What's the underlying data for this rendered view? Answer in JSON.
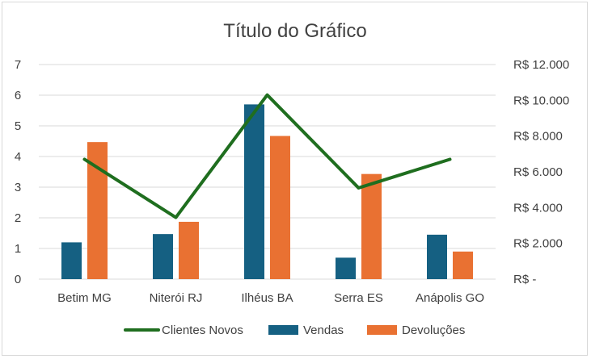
{
  "chart_data": {
    "type": "bar",
    "title": "Título do Gráfico",
    "categories": [
      "Betim MG",
      "Niterói RJ",
      "Ilhéus BA",
      "Serra ES",
      "Anápolis GO"
    ],
    "series": [
      {
        "name": "Clientes Novos",
        "type": "line",
        "axis": "right",
        "color": "#1f6e1f",
        "values": [
          6700,
          3450,
          10300,
          5100,
          6700
        ]
      },
      {
        "name": "Vendas",
        "type": "bar",
        "axis": "left",
        "color": "#156082",
        "values": [
          1.2,
          1.47,
          5.7,
          0.7,
          1.45
        ]
      },
      {
        "name": "Devoluções",
        "type": "bar",
        "axis": "left",
        "color": "#e97132",
        "values": [
          4.47,
          1.87,
          4.67,
          3.43,
          0.9
        ]
      }
    ],
    "y_left": {
      "min": 0,
      "max": 7,
      "ticks": [
        "0",
        "1",
        "2",
        "3",
        "4",
        "5",
        "6",
        "7"
      ]
    },
    "y_right": {
      "min": 0,
      "max": 12000,
      "ticks": [
        "R$ -",
        "R$ 2.000",
        "R$ 4.000",
        "R$ 6.000",
        "R$ 8.000",
        "R$ 10.000",
        "R$ 12.000"
      ]
    },
    "grid": true,
    "legend_position": "bottom"
  }
}
